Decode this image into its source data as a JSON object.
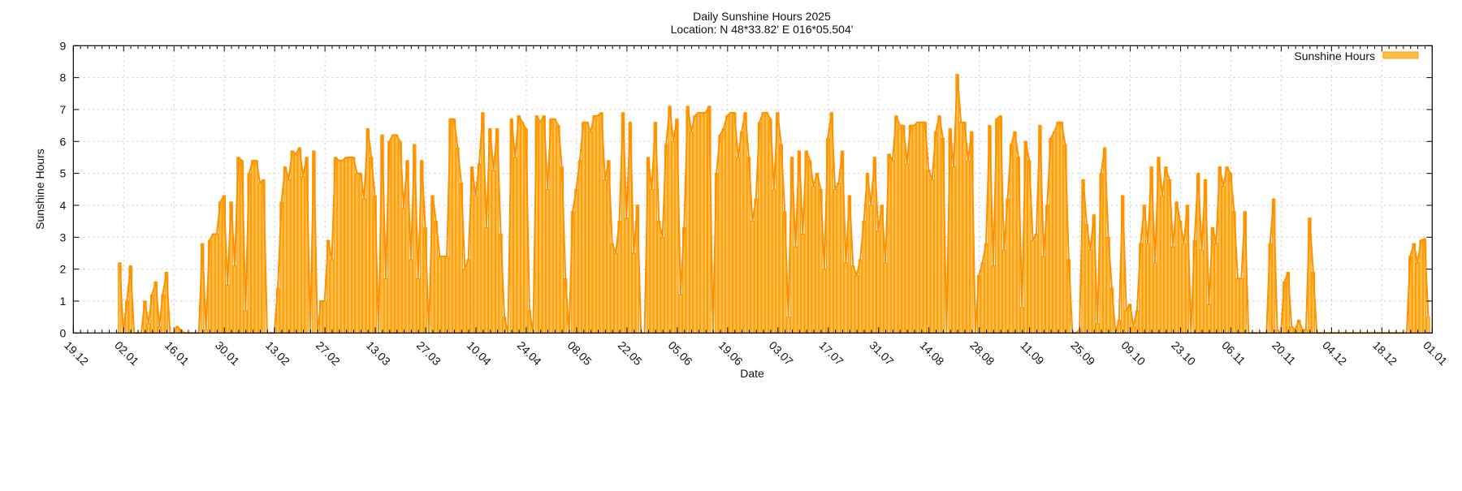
{
  "chart_data": {
    "type": "bar",
    "title": "Daily Sunshine Hours 2025",
    "subtitle": "Location: N 48*33.82'  E 016*05.504'",
    "xlabel": "Date",
    "ylabel": "Sunshine Hours",
    "xlim": [
      "2024-12-19",
      "2026-01-01"
    ],
    "ylim": [
      0,
      9
    ],
    "yticks": [
      "0",
      "1",
      "2",
      "3",
      "4",
      "5",
      "6",
      "7",
      "8",
      "9"
    ],
    "xticks": [
      "19.12",
      "02.01",
      "16.01",
      "30.01",
      "13.02",
      "27.02",
      "13.03",
      "27.03",
      "10.04",
      "24.04",
      "08.05",
      "22.05",
      "05.06",
      "19.06",
      "03.07",
      "17.07",
      "31.07",
      "14.08",
      "28.08",
      "11.09",
      "25.09",
      "09.10",
      "23.10",
      "06.11",
      "20.11",
      "04.12",
      "18.12",
      "01.01"
    ],
    "grid": true,
    "legend_placement": "top-right",
    "series": [
      {
        "name": "Sunshine Hours",
        "fill_color": "#ffbf4d",
        "line_color": "#ff9000",
        "daily_values_by_month": {
          "2025-01": [
            2.2,
            0,
            1.0,
            2.1,
            0,
            0,
            0,
            1.0,
            0.3,
            1.2,
            1.6,
            0.2,
            1.2,
            1.9,
            0,
            0,
            0.2,
            0.1,
            0,
            0,
            0,
            0,
            0,
            2.8,
            0.1,
            2.9,
            3.1,
            3.1,
            4.1,
            4.3,
            1.5
          ],
          "2025-02": [
            4.1,
            2.1,
            5.5,
            5.4,
            0.7,
            5.0,
            5.4,
            5.4,
            4.7,
            4.8,
            0,
            0,
            0,
            1.4,
            4.1,
            5.2,
            4.8,
            5.7,
            5.6,
            5.8,
            4.9,
            5.5,
            0,
            5.7,
            0,
            1.0,
            1.0,
            2.9
          ],
          "2025-03": [
            2.3,
            5.5,
            5.4,
            5.4,
            5.5,
            5.5,
            5.5,
            5.0,
            5.0,
            4.2,
            6.4,
            5.5,
            4.3,
            0,
            6.2,
            1.7,
            6.0,
            6.2,
            6.2,
            6.0,
            3.9,
            5.4,
            2.3,
            5.9,
            1.7,
            5.4,
            3.3,
            0,
            4.3,
            3.5,
            2.4
          ],
          "2025-04": [
            2.4,
            2.4,
            6.7,
            6.7,
            5.8,
            4.7,
            2.0,
            2.3,
            5.2,
            4.3,
            5.3,
            6.9,
            3.3,
            6.4,
            5.1,
            6.4,
            3.1,
            0.5,
            0,
            6.7,
            5.5,
            6.8,
            6.6,
            6.4,
            0.7,
            0,
            6.8,
            6.6,
            6.8,
            4.5
          ],
          "2025-05": [
            6.7,
            6.7,
            6.5,
            5.2,
            1.7,
            0,
            3.8,
            4.5,
            5.4,
            6.6,
            6.6,
            6.3,
            6.8,
            6.8,
            6.9,
            4.8,
            5.4,
            2.8,
            2.5,
            3.5,
            6.9,
            3.6,
            6.6,
            2.5,
            4.0,
            0,
            0,
            5.5,
            4.5,
            6.6,
            3.5
          ],
          "2025-06": [
            3.0,
            5.9,
            7.1,
            6.0,
            6.7,
            1.2,
            3.3,
            7.1,
            6.3,
            6.8,
            6.9,
            6.9,
            6.9,
            7.1,
            0,
            5.0,
            6.2,
            6.4,
            6.8,
            6.9,
            6.9,
            5.5,
            6.3,
            6.9,
            5.5,
            3.5,
            4.2,
            6.6,
            6.9,
            6.9
          ],
          "2025-07": [
            6.7,
            4.5,
            6.9,
            5.9,
            3.8,
            0.5,
            5.5,
            2.7,
            5.7,
            3.1,
            5.7,
            5.4,
            4.6,
            5.0,
            4.5,
            2.0,
            6.1,
            6.9,
            4.5,
            4.7,
            5.7,
            2.2,
            4.3,
            2.1,
            1.8,
            2.3,
            3.5,
            5.0,
            4.0,
            5.5,
            3.2
          ],
          "2025-08": [
            4.0,
            2.2,
            5.6,
            5.4,
            6.8,
            6.5,
            6.5,
            5.3,
            6.5,
            6.5,
            6.6,
            6.6,
            6.6,
            5.1,
            4.8,
            6.3,
            6.8,
            6.1,
            0,
            6.4,
            5.2,
            8.1,
            6.6,
            6.6,
            5.4,
            6.3,
            0,
            1.8,
            2.2,
            2.8,
            6.5
          ],
          "2025-09": [
            2.1,
            6.7,
            6.8,
            2.6,
            4.2,
            5.9,
            6.3,
            5.5,
            0.8,
            6.0,
            5.4,
            2.9,
            3.1,
            6.5,
            2.4,
            4.0,
            6.1,
            6.3,
            6.6,
            6.6,
            5.9,
            2.3,
            0,
            0,
            0.1,
            4.8,
            3.4,
            2.6,
            3.7,
            0.3
          ],
          "2025-10": [
            5.0,
            5.8,
            3.0,
            1.4,
            0,
            0.4,
            4.3,
            0.7,
            0.9,
            0.2,
            0.7,
            2.8,
            4.0,
            2.8,
            5.2,
            2.2,
            5.5,
            4.3,
            5.2,
            4.8,
            2.7,
            4.1,
            3.5,
            2.8,
            4.0,
            0,
            2.9,
            5.0,
            2.6,
            4.8,
            0.9
          ],
          "2025-11": [
            3.3,
            2.8,
            5.2,
            4.6,
            5.2,
            5.0,
            3.8,
            1.7,
            1.7,
            3.8,
            0,
            0,
            0,
            0,
            0,
            0,
            2.8,
            4.2,
            0.1,
            0,
            1.6,
            1.9,
            0.2,
            0.1,
            0.4,
            0.1,
            0.1,
            3.6,
            1.9,
            0
          ],
          "2025-12": [
            0,
            0,
            0,
            0,
            0,
            0,
            0,
            0,
            0,
            0,
            0,
            0,
            0,
            0,
            0,
            0,
            0,
            0,
            0,
            0,
            0,
            0,
            0,
            0,
            0,
            2.4,
            2.8,
            2.2,
            2.9,
            2.95,
            0.5
          ]
        }
      }
    ]
  }
}
